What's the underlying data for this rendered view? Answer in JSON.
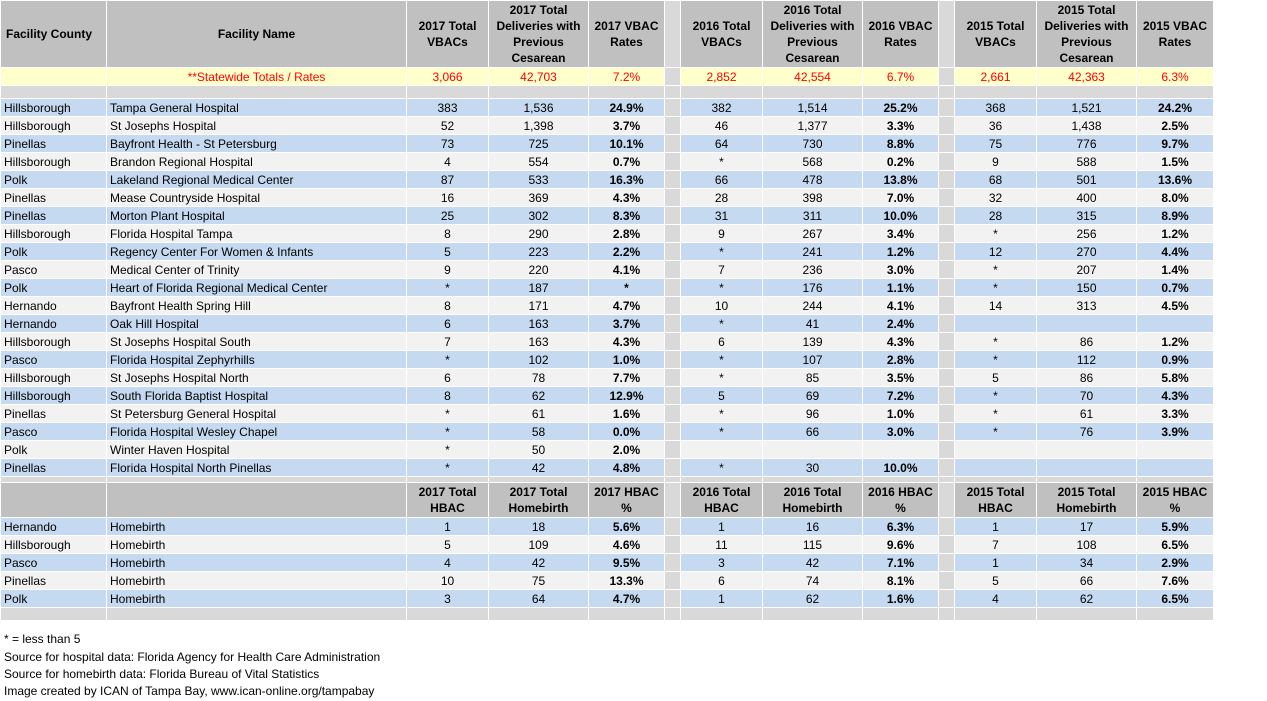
{
  "table1": {
    "headers": [
      "Facility County",
      "Facility Name",
      "2017 Total VBACs",
      "2017 Total Deliveries with Previous Cesarean",
      "2017 VBAC Rates",
      "2016 Total VBACs",
      "2016 Total Deliveries with Previous Cesarean",
      "2016 VBAC Rates",
      "2015 Total VBACs",
      "2015 Total Deliveries with Previous Cesarean",
      "2015 VBAC Rates"
    ],
    "totals": [
      "",
      "**Statewide Totals / Rates",
      "3,066",
      "42,703",
      "7.2%",
      "2,852",
      "42,554",
      "6.7%",
      "2,661",
      "42,363",
      "6.3%"
    ],
    "rows": [
      [
        "Hillsborough",
        "Tampa General Hospital",
        "383",
        "1,536",
        "24.9%",
        "382",
        "1,514",
        "25.2%",
        "368",
        "1,521",
        "24.2%"
      ],
      [
        "Hillsborough",
        "St Josephs Hospital",
        "52",
        "1,398",
        "3.7%",
        "46",
        "1,377",
        "3.3%",
        "36",
        "1,438",
        "2.5%"
      ],
      [
        "Pinellas",
        "Bayfront Health - St Petersburg",
        "73",
        "725",
        "10.1%",
        "64",
        "730",
        "8.8%",
        "75",
        "776",
        "9.7%"
      ],
      [
        "Hillsborough",
        "Brandon Regional Hospital",
        "4",
        "554",
        "0.7%",
        "*",
        "568",
        "0.2%",
        "9",
        "588",
        "1.5%"
      ],
      [
        "Polk",
        "Lakeland Regional Medical Center",
        "87",
        "533",
        "16.3%",
        "66",
        "478",
        "13.8%",
        "68",
        "501",
        "13.6%"
      ],
      [
        "Pinellas",
        "Mease Countryside Hospital",
        "16",
        "369",
        "4.3%",
        "28",
        "398",
        "7.0%",
        "32",
        "400",
        "8.0%"
      ],
      [
        "Pinellas",
        "Morton Plant Hospital",
        "25",
        "302",
        "8.3%",
        "31",
        "311",
        "10.0%",
        "28",
        "315",
        "8.9%"
      ],
      [
        "Hillsborough",
        "Florida Hospital Tampa",
        "8",
        "290",
        "2.8%",
        "9",
        "267",
        "3.4%",
        "*",
        "256",
        "1.2%"
      ],
      [
        "Polk",
        "Regency Center For Women & Infants",
        "5",
        "223",
        "2.2%",
        "*",
        "241",
        "1.2%",
        "12",
        "270",
        "4.4%"
      ],
      [
        "Pasco",
        "Medical Center of Trinity",
        "9",
        "220",
        "4.1%",
        "7",
        "236",
        "3.0%",
        "*",
        "207",
        "1.4%"
      ],
      [
        "Polk",
        "Heart of Florida Regional Medical Center",
        "*",
        "187",
        "*",
        "*",
        "176",
        "1.1%",
        "*",
        "150",
        "0.7%"
      ],
      [
        "Hernando",
        "Bayfront Health Spring Hill",
        "8",
        "171",
        "4.7%",
        "10",
        "244",
        "4.1%",
        "14",
        "313",
        "4.5%"
      ],
      [
        "Hernando",
        "Oak Hill Hospital",
        "6",
        "163",
        "3.7%",
        "*",
        "41",
        "2.4%",
        "",
        "",
        ""
      ],
      [
        "Hillsborough",
        "St Josephs Hospital South",
        "7",
        "163",
        "4.3%",
        "6",
        "139",
        "4.3%",
        "*",
        "86",
        "1.2%"
      ],
      [
        "Pasco",
        "Florida Hospital Zephyrhills",
        "*",
        "102",
        "1.0%",
        "*",
        "107",
        "2.8%",
        "*",
        "112",
        "0.9%"
      ],
      [
        "Hillsborough",
        "St Josephs Hospital North",
        "6",
        "78",
        "7.7%",
        "*",
        "85",
        "3.5%",
        "5",
        "86",
        "5.8%"
      ],
      [
        "Hillsborough",
        "South Florida Baptist Hospital",
        "8",
        "62",
        "12.9%",
        "5",
        "69",
        "7.2%",
        "*",
        "70",
        "4.3%"
      ],
      [
        "Pinellas",
        "St Petersburg General Hospital",
        "*",
        "61",
        "1.6%",
        "*",
        "96",
        "1.0%",
        "*",
        "61",
        "3.3%"
      ],
      [
        "Pasco",
        "Florida Hospital Wesley Chapel",
        "*",
        "58",
        "0.0%",
        "*",
        "66",
        "3.0%",
        "*",
        "76",
        "3.9%"
      ],
      [
        "Polk",
        "Winter Haven Hospital",
        "*",
        "50",
        "2.0%",
        "",
        "",
        "",
        "",
        "",
        ""
      ],
      [
        "Pinellas",
        "Florida Hospital North Pinellas",
        "*",
        "42",
        "4.8%",
        "*",
        "30",
        "10.0%",
        "",
        "",
        ""
      ]
    ]
  },
  "table2": {
    "headers": [
      "",
      "",
      "2017 Total HBAC",
      "2017 Total Homebirth",
      "2017 HBAC %",
      "2016 Total HBAC",
      "2016 Total Homebirth",
      "2016 HBAC %",
      "2015 Total HBAC",
      "2015 Total Homebirth",
      "2015 HBAC %"
    ],
    "rows": [
      [
        "Hernando",
        "Homebirth",
        "1",
        "18",
        "5.6%",
        "1",
        "16",
        "6.3%",
        "1",
        "17",
        "5.9%"
      ],
      [
        "Hillsborough",
        "Homebirth",
        "5",
        "109",
        "4.6%",
        "11",
        "115",
        "9.6%",
        "7",
        "108",
        "6.5%"
      ],
      [
        "Pasco",
        "Homebirth",
        "4",
        "42",
        "9.5%",
        "3",
        "42",
        "7.1%",
        "1",
        "34",
        "2.9%"
      ],
      [
        "Pinellas",
        "Homebirth",
        "10",
        "75",
        "13.3%",
        "6",
        "74",
        "8.1%",
        "5",
        "66",
        "7.6%"
      ],
      [
        "Polk",
        "Homebirth",
        "3",
        "64",
        "4.7%",
        "1",
        "62",
        "1.6%",
        "4",
        "62",
        "6.5%"
      ]
    ]
  },
  "footnotes": [
    "* = less than 5",
    "Source for hospital data: Florida Agency for Health Care Administration",
    "Source for homebirth data: Florida Bureau of Vital Statistics",
    "Image created by ICAN of Tampa Bay, www.ican-online.org/tampabay"
  ],
  "colors": {
    "header": "#c0c0c0",
    "row_blue": "#c5d9f1",
    "row_light": "#f2f2f2",
    "totals_bg": "#ffffcc",
    "totals_text": "#ff0000",
    "separator": "#d9d9d9"
  }
}
